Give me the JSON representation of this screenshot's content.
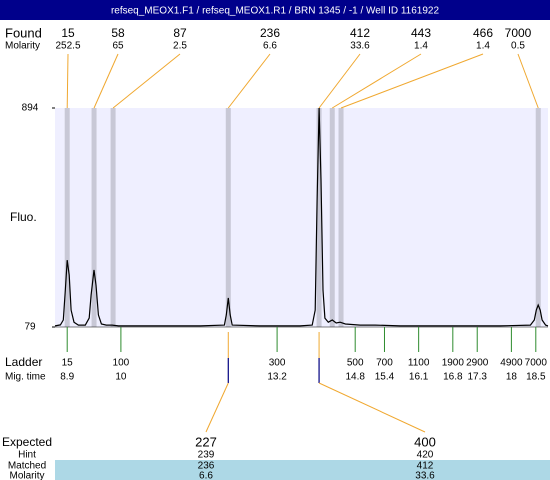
{
  "chart_data": {
    "type": "line",
    "title": "refseq_MEOX1.F1 / refseq_MEOX1.R1 / BRN 1345 / -1 / Well ID 1161922",
    "y_label": "Fluo.",
    "xlim": [
      8.65,
      18.75
    ],
    "ylim": [
      79,
      894
    ],
    "yticks": [
      79,
      894
    ],
    "color": "#000000",
    "x": [
      8.65,
      8.76,
      8.82,
      8.86,
      8.9,
      8.94,
      8.98,
      9.04,
      9.13,
      9.27,
      9.35,
      9.39,
      9.45,
      9.49,
      9.54,
      9.6,
      9.7,
      9.82,
      9.95,
      10.19,
      11.63,
      12.12,
      12.16,
      12.2,
      12.24,
      12.28,
      12.85,
      13.67,
      13.92,
      13.98,
      14.02,
      14.06,
      14.1,
      14.14,
      14.18,
      14.25,
      14.33,
      14.41,
      14.49,
      14.6,
      14.9,
      15.21,
      15.72,
      16.75,
      17.77,
      18.39,
      18.47,
      18.51,
      18.55,
      18.59,
      18.63,
      18.7,
      18.75
    ],
    "values": [
      83,
      87,
      105,
      215,
      328,
      272,
      142,
      97,
      86,
      86,
      112,
      198,
      291,
      235,
      124,
      90,
      86,
      86,
      83,
      83,
      83,
      86,
      124,
      187,
      124,
      86,
      83,
      83,
      86,
      142,
      551,
      894,
      626,
      216,
      112,
      97,
      105,
      94,
      97,
      90,
      86,
      86,
      83,
      83,
      83,
      86,
      105,
      142,
      161,
      142,
      105,
      86,
      83
    ],
    "found": {
      "label": "Found",
      "molarity_label": "Molarity",
      "sizes": [
        15,
        58,
        87,
        236,
        412,
        443,
        466,
        7000
      ],
      "molarity": [
        252.5,
        65,
        2.5,
        6.6,
        33.6,
        1.4,
        1.4,
        0.5
      ],
      "x": [
        8.9,
        9.45,
        9.84,
        12.2,
        14.06,
        14.33,
        14.51,
        18.55
      ]
    },
    "ladder": {
      "label": "Ladder",
      "time_label": "Mig. time",
      "sizes": [
        15,
        100,
        300,
        500,
        700,
        1100,
        1900,
        2900,
        4900,
        7000
      ],
      "times": [
        8.9,
        10,
        13.2,
        14.8,
        15.4,
        16.1,
        16.8,
        17.3,
        18,
        18.5
      ]
    },
    "expected": {
      "label": "Expected",
      "hint_label": "Hint",
      "matched_label": "Matched",
      "molarity_label": "Molarity",
      "sizes": [
        227,
        400
      ],
      "hint": [
        239,
        420
      ],
      "matched": [
        236,
        412
      ],
      "molarity": [
        6.6,
        33.6
      ]
    }
  }
}
